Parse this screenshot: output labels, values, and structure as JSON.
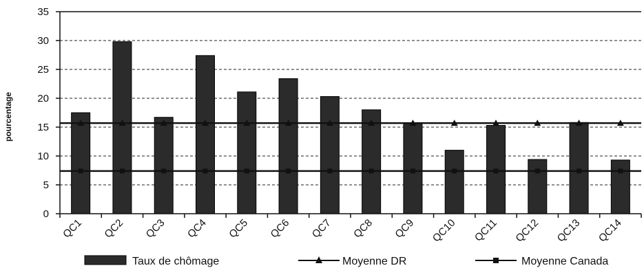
{
  "chart_data": {
    "type": "bar",
    "ylabel": "pourcentage",
    "ylim": [
      0,
      35
    ],
    "yticks": [
      0,
      5,
      10,
      15,
      20,
      25,
      30,
      35
    ],
    "grid": "horizontal-dashed",
    "legend_position": "bottom",
    "categories": [
      "QC1",
      "QC2",
      "QC3",
      "QC4",
      "QC5",
      "QC6",
      "QC7",
      "QC8",
      "QC9",
      "QC10",
      "QC11",
      "QC12",
      "QC13",
      "QC14"
    ],
    "series": [
      {
        "name": "Taux de chômage",
        "type": "bar",
        "values": [
          17.5,
          29.8,
          16.7,
          27.4,
          21.1,
          23.4,
          20.3,
          18.0,
          15.7,
          11.0,
          15.3,
          9.4,
          15.8,
          9.3
        ],
        "color": "#2b2b2b"
      },
      {
        "name": "Moyenne DR",
        "type": "line",
        "marker": "triangle",
        "values": [
          15.7,
          15.7,
          15.7,
          15.7,
          15.7,
          15.7,
          15.7,
          15.7,
          15.7,
          15.7,
          15.7,
          15.7,
          15.7,
          15.7
        ],
        "color": "#111111"
      },
      {
        "name": "Moyenne Canada",
        "type": "line",
        "marker": "square",
        "values": [
          7.4,
          7.4,
          7.4,
          7.4,
          7.4,
          7.4,
          7.4,
          7.4,
          7.4,
          7.4,
          7.4,
          7.4,
          7.4,
          7.4
        ],
        "color": "#111111"
      }
    ]
  }
}
